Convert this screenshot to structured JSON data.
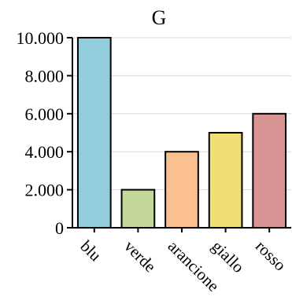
{
  "chart_data": {
    "type": "bar",
    "title": "G",
    "xlabel": "",
    "ylabel": "",
    "categories": [
      "blu",
      "verde",
      "arancione",
      "giallo",
      "rosso"
    ],
    "values": [
      10000,
      2000,
      4000,
      5000,
      6000
    ],
    "colors": [
      "#92cddd",
      "#c3d89a",
      "#fac090",
      "#f0df72",
      "#d99594"
    ],
    "ylim": [
      0,
      10000
    ],
    "yticks": [
      0,
      2000,
      4000,
      6000,
      8000,
      10000
    ],
    "ytick_labels": [
      "0",
      "2.000",
      "4.000",
      "6.000",
      "8.000",
      "10.000"
    ],
    "grid": true,
    "legend": "none"
  }
}
